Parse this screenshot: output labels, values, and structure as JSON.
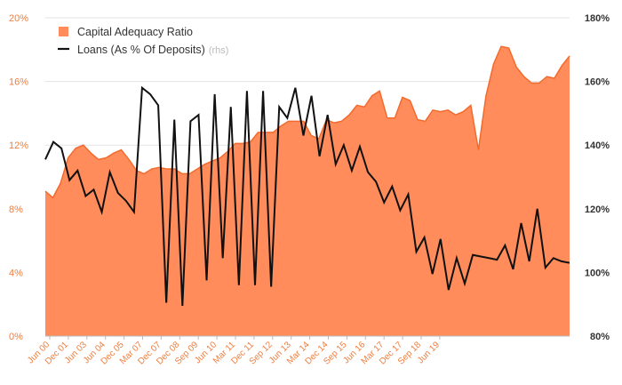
{
  "chart_data": {
    "type": "area+line",
    "title": "",
    "colors": {
      "area": "#ff8c5a",
      "area_stroke": "#f26b2e",
      "line": "#111111",
      "left_axis": "#f07d3c",
      "right_axis": "#333333"
    },
    "y_left": {
      "min": 0,
      "max": 20,
      "ticks": [
        "0%",
        "4%",
        "8%",
        "12%",
        "16%",
        "20%"
      ]
    },
    "y_right": {
      "min": 80,
      "max": 180,
      "ticks": [
        "80%",
        "100%",
        "120%",
        "140%",
        "160%",
        "180%"
      ]
    },
    "x_tick_labels": [
      "Jun 00",
      "Dec 01",
      "Jun 03",
      "Jun 04",
      "Dec 05",
      "Mar 07",
      "Dec 07",
      "Dec 08",
      "Sep 09",
      "Jun 10",
      "Mar 11",
      "Dec 11",
      "Sep 12",
      "Jun 13",
      "Mar 14",
      "Dec 14",
      "Sep 15",
      "Jun 16",
      "Mar 17",
      "Dec 17",
      "Sep 18",
      "Jun 19"
    ],
    "legend": [
      {
        "name": "Capital Adequacy Ratio",
        "suffix": ""
      },
      {
        "name": "Loans (As % Of Deposits)",
        "suffix": "(rhs)"
      }
    ],
    "series": [
      {
        "name": "Capital Adequacy Ratio",
        "type": "area",
        "axis": "left",
        "values": [
          9.1,
          8.7,
          9.6,
          11.2,
          11.8,
          12.0,
          11.5,
          11.1,
          11.2,
          11.5,
          11.7,
          11.1,
          10.4,
          10.2,
          10.5,
          10.6,
          10.5,
          10.5,
          10.2,
          10.2,
          10.5,
          10.8,
          11.0,
          11.2,
          11.6,
          12.1,
          12.1,
          12.2,
          12.8,
          12.8,
          12.8,
          13.2,
          13.5,
          13.5,
          13.5,
          12.6,
          12.4,
          13.6,
          13.4,
          13.5,
          13.9,
          14.5,
          14.4,
          15.1,
          15.4,
          13.7,
          13.7,
          15.0,
          14.8,
          13.6,
          13.5,
          14.2,
          14.1,
          14.2,
          13.9,
          14.1,
          14.5,
          11.7,
          15.1,
          17.1,
          18.2,
          18.1,
          16.9,
          16.3,
          15.9,
          15.9,
          16.3,
          16.2,
          17.0,
          17.6
        ]
      },
      {
        "name": "Loans (As % Of Deposits)",
        "type": "line",
        "axis": "right",
        "values": [
          135.5,
          141,
          139,
          129,
          132,
          124,
          126,
          119,
          131.5,
          125,
          122.5,
          119,
          158,
          156,
          152.5,
          90.5,
          148,
          89.5,
          147.5,
          149.5,
          97.5,
          156,
          104.5,
          152,
          96,
          157,
          96,
          157,
          95.5,
          152,
          148.5,
          158,
          143,
          155.5,
          136.5,
          149.5,
          134,
          140,
          132,
          139.5,
          131.5,
          128.5,
          122,
          127,
          119.5,
          124.5,
          106.5,
          111,
          99.5,
          110.5,
          94.5,
          104.5,
          96.5,
          105.5,
          105,
          104.5,
          104,
          108.5,
          101,
          115.5,
          103.5,
          120,
          101.5,
          104.5,
          103.5,
          103
        ]
      }
    ]
  }
}
